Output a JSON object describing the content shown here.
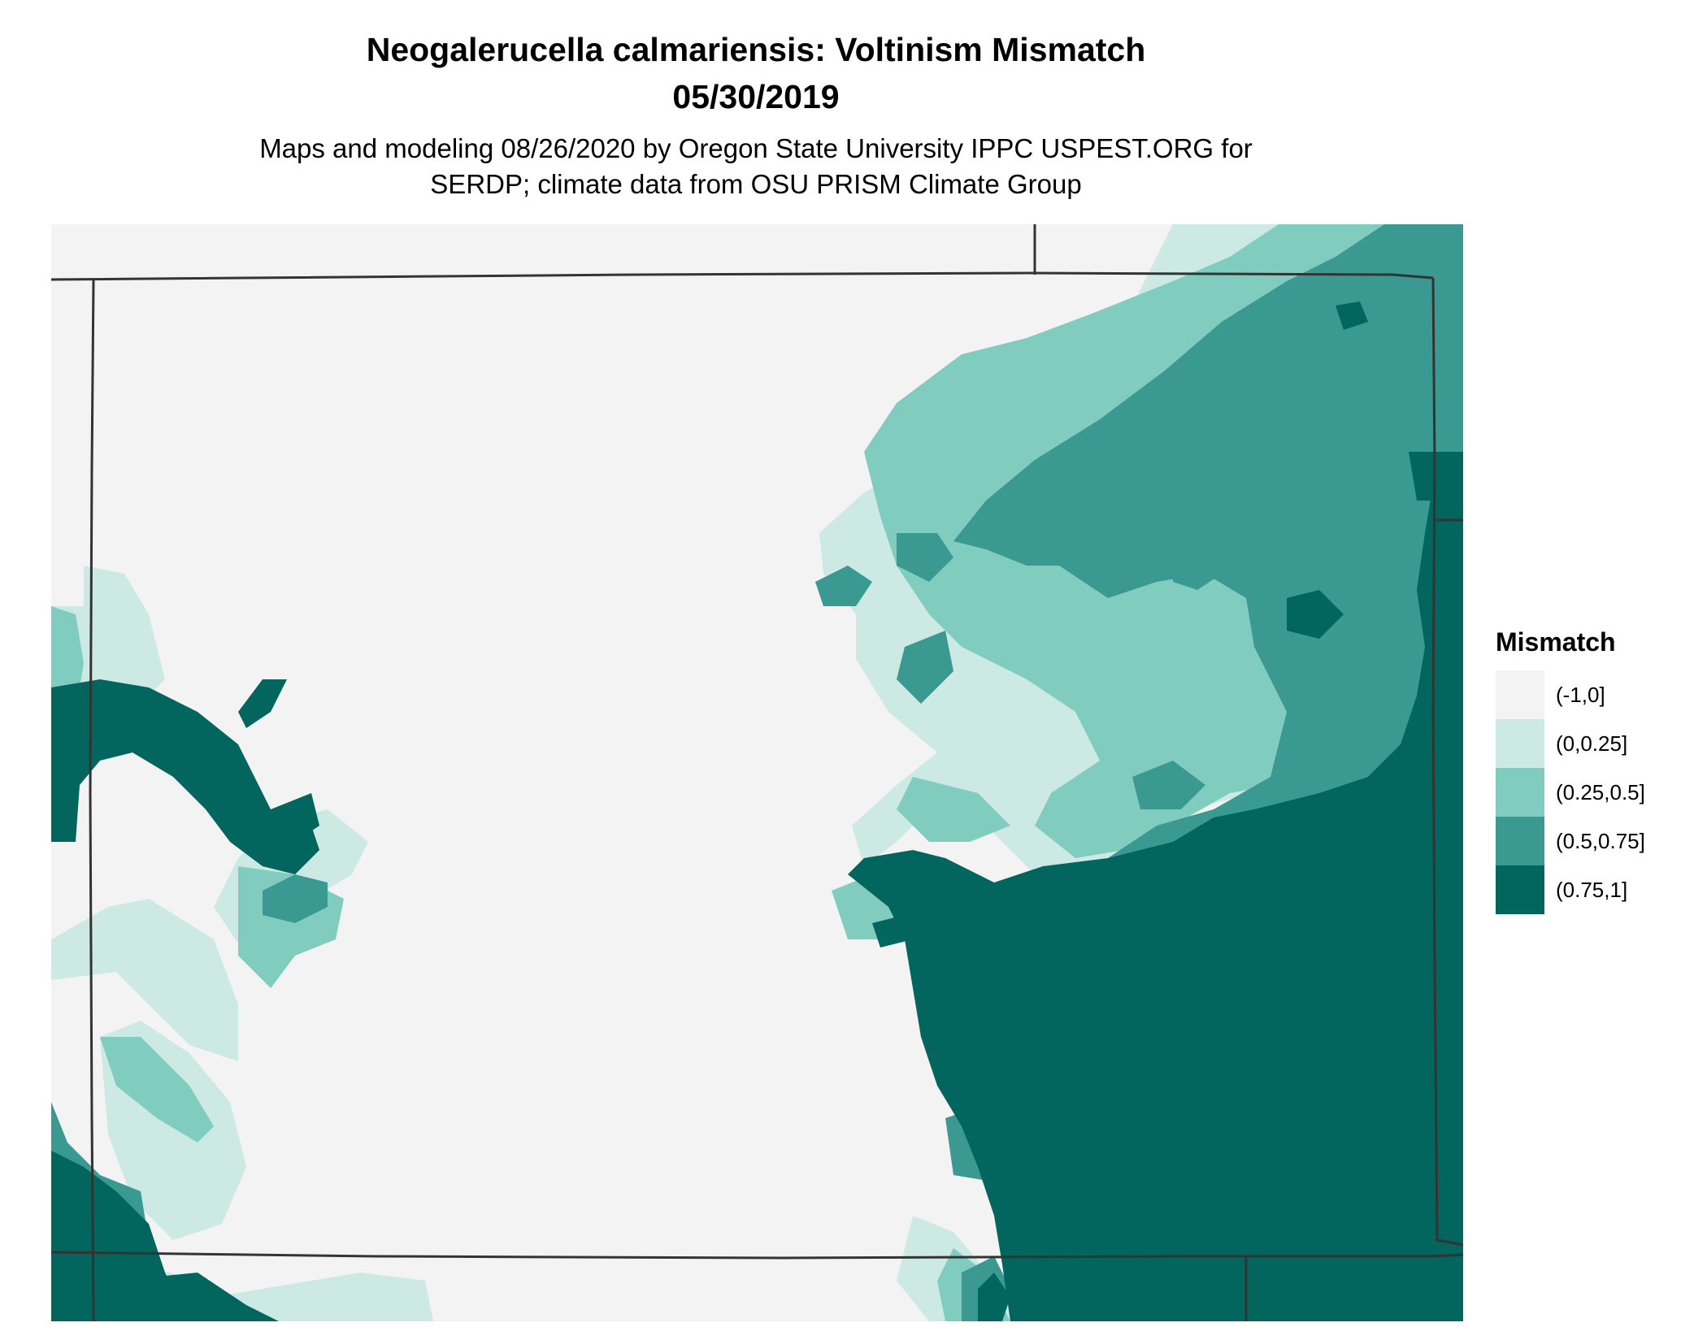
{
  "title": "Neogalerucella calmariensis: Voltinism Mismatch",
  "date": "05/30/2019",
  "subtitle_line1": "Maps and modeling 08/26/2020 by Oregon State University IPPC USPEST.ORG for",
  "subtitle_line2": "SERDP; climate data from OSU PRISM Climate Group",
  "legend": {
    "title": "Mismatch",
    "items": [
      {
        "label": "(-1,0]",
        "color": "#f3f3f3"
      },
      {
        "label": "(0,0.25]",
        "color": "#cce9e3"
      },
      {
        "label": "(0.25,0.5]",
        "color": "#80cdc0"
      },
      {
        "label": "(0.5,0.75]",
        "color": "#3a9990"
      },
      {
        "label": "(0.75,1]",
        "color": "#02665e"
      }
    ]
  }
}
